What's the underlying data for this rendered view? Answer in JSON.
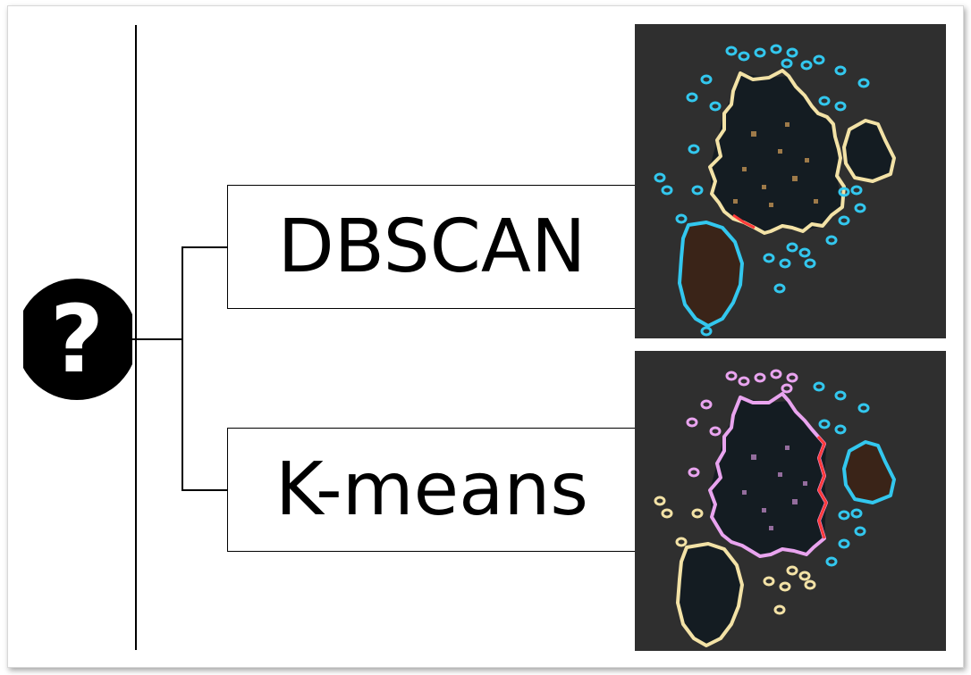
{
  "diagram": {
    "root_icon": "question-mark-icon",
    "root_symbol": "?",
    "methods": [
      {
        "label": "DBSCAN",
        "thumbnail": "dbscan-clustering-result"
      },
      {
        "label": "K-means",
        "thumbnail": "kmeans-clustering-result"
      }
    ],
    "colors": {
      "panel_background": "#2f2f2f",
      "cluster_cyan": "#33c7ee",
      "cluster_cream": "#f3e2a6",
      "cluster_pink": "#e9a4ef",
      "boundary_red": "#ff3a3a",
      "blob_brown": "#3a2418"
    }
  }
}
